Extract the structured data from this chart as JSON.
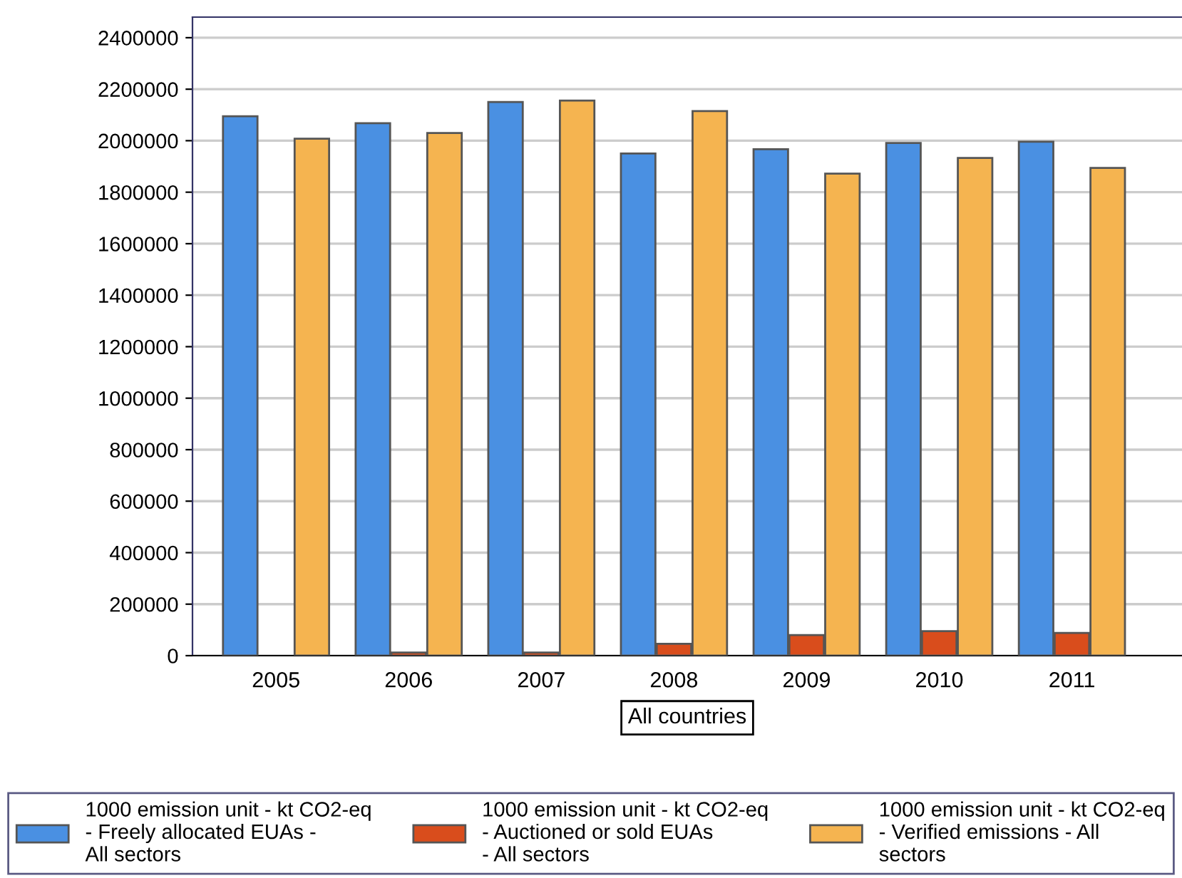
{
  "chart_data": {
    "type": "bar",
    "xlabel": "All countries",
    "categories": [
      "2005",
      "2006",
      "2007",
      "2008",
      "2009",
      "2010",
      "2011"
    ],
    "series": [
      {
        "name": "1000 emission unit - kt CO2-eq\n- Freely allocated EUAs -\nAll sectors",
        "color": "#4a90e2",
        "values": [
          2095000,
          2068000,
          2150000,
          1950000,
          1967000,
          1991000,
          1996000
        ]
      },
      {
        "name": "1000 emission unit - kt CO2-eq\n- Auctioned or sold EUAs\n- All sectors",
        "color": "#d94d1c",
        "values": [
          null,
          12000,
          12000,
          46000,
          80000,
          95000,
          88000
        ]
      },
      {
        "name": "1000 emission unit - kt CO2-eq\n- Verified emissions - All\nsectors",
        "color": "#f5b450",
        "values": [
          2008000,
          2030000,
          2156000,
          2115000,
          1872000,
          1933000,
          1894000
        ]
      }
    ],
    "ylim": [
      0,
      2480000
    ],
    "yticks": [
      0,
      200000,
      400000,
      600000,
      800000,
      1000000,
      1200000,
      1400000,
      1600000,
      1800000,
      2000000,
      2200000,
      2400000
    ],
    "grid": "y",
    "legend": "bottom"
  }
}
